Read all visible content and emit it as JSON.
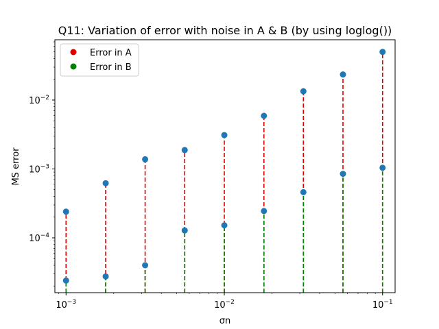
{
  "chart_data": {
    "type": "scatter",
    "title": "Q11: Variation of error with noise in A & B (by using loglog())",
    "xlabel": "σn",
    "ylabel": "MS error",
    "xscale": "log",
    "yscale": "log",
    "xlim": [
      0.00085,
      0.12
    ],
    "ylim": [
      1.6e-05,
      0.075
    ],
    "x": [
      0.001,
      0.00178,
      0.00316,
      0.00562,
      0.01,
      0.0178,
      0.0316,
      0.0562,
      0.1
    ],
    "series": [
      {
        "name": "Error in A",
        "stem_color": "#e00000",
        "marker_color": "#1f77b4",
        "values": [
          0.00024,
          0.00062,
          0.00138,
          0.00188,
          0.0031,
          0.0059,
          0.0134,
          0.0235,
          0.05
        ]
      },
      {
        "name": "Error in B",
        "stem_color": "#008000",
        "marker_color": "#1f77b4",
        "values": [
          2.4e-05,
          2.75e-05,
          4e-05,
          0.000128,
          0.000152,
          0.000245,
          0.00046,
          0.00085,
          0.00104
        ]
      }
    ],
    "xticks": [
      {
        "value": 0.001,
        "base": "10",
        "exp": "−3"
      },
      {
        "value": 0.01,
        "base": "10",
        "exp": "−2"
      },
      {
        "value": 0.1,
        "base": "10",
        "exp": "−1"
      }
    ],
    "yticks": [
      {
        "value": 0.0001,
        "base": "10",
        "exp": "−4"
      },
      {
        "value": 0.001,
        "base": "10",
        "exp": "−3"
      },
      {
        "value": 0.01,
        "base": "10",
        "exp": "−2"
      }
    ],
    "legend": {
      "position": "upper-left",
      "items": [
        {
          "label": "Error in A",
          "color": "#e00000"
        },
        {
          "label": "Error in B",
          "color": "#008000"
        }
      ]
    },
    "grid": false
  }
}
